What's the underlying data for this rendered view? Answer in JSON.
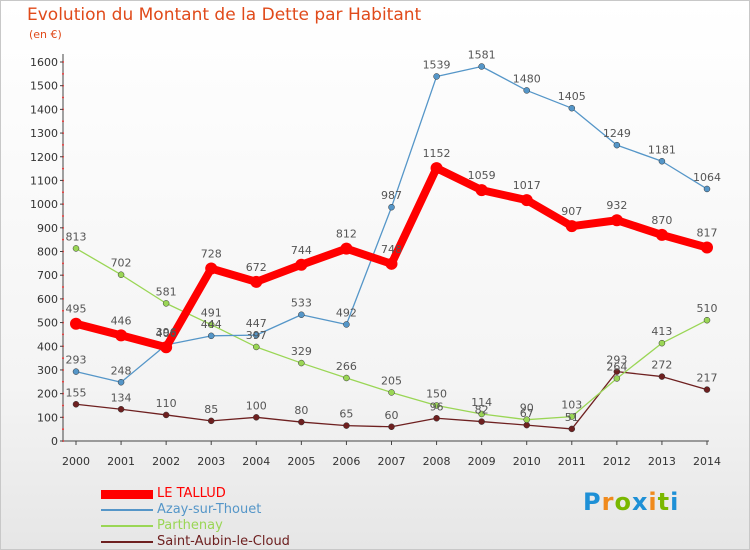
{
  "page": {
    "title": "Evolution du Montant de la Dette par Habitant",
    "unit": "(en €)",
    "logo": "Proxiti",
    "logo_colors": [
      "#1e90d6",
      "#f08a1c",
      "#7ab800",
      "#1e90d6",
      "#f08a1c",
      "#7ab800",
      "#1e90d6"
    ]
  },
  "chart_data": {
    "type": "line",
    "title": "Evolution du Montant de la Dette par Habitant",
    "ylabel": "(en €)",
    "xlabel": "",
    "x": [
      "2000",
      "2001",
      "2002",
      "2003",
      "2004",
      "2005",
      "2006",
      "2007",
      "2008",
      "2009",
      "2010",
      "2011",
      "2012",
      "2013",
      "2014"
    ],
    "ylim": [
      0,
      1600
    ],
    "yticks": [
      0,
      100,
      200,
      300,
      400,
      500,
      600,
      700,
      800,
      900,
      1000,
      1100,
      1200,
      1300,
      1400,
      1500,
      1600
    ],
    "grid": false,
    "legend_position": "bottom-left",
    "series": [
      {
        "name": "LE TALLUD",
        "color": "#ff0000",
        "emphasis": true,
        "values": [
          495,
          446,
          396,
          728,
          672,
          744,
          812,
          748,
          1152,
          1059,
          1017,
          907,
          932,
          870,
          817
        ]
      },
      {
        "name": "Azay-sur-Thouet",
        "color": "#5596c8",
        "emphasis": false,
        "values": [
          293,
          248,
          406,
          444,
          447,
          533,
          492,
          987,
          1539,
          1581,
          1480,
          1405,
          1249,
          1181,
          1064
        ]
      },
      {
        "name": "Parthenay",
        "color": "#9ad655",
        "emphasis": false,
        "values": [
          813,
          702,
          581,
          491,
          397,
          329,
          266,
          205,
          150,
          114,
          90,
          103,
          264,
          413,
          510
        ]
      },
      {
        "name": "Saint-Aubin-le-Cloud",
        "color": "#6e2020",
        "emphasis": false,
        "values": [
          155,
          134,
          110,
          85,
          100,
          80,
          65,
          60,
          96,
          82,
          67,
          51,
          293,
          272,
          217
        ]
      }
    ]
  }
}
